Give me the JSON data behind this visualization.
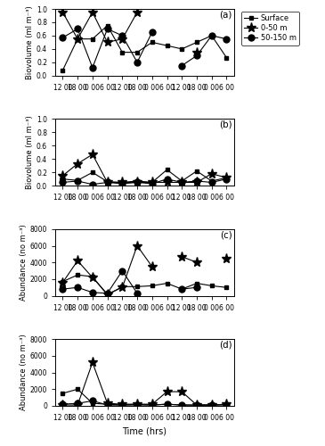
{
  "x_ticks_labels": [
    "12 00",
    "18 00",
    "0 00",
    "6 00",
    "12 00",
    "18 00",
    "0 00",
    "6 00",
    "12 00",
    "18 00",
    "0 00",
    "6 00"
  ],
  "x_vals": [
    0,
    1,
    2,
    3,
    4,
    5,
    6,
    7,
    8,
    9,
    10,
    11
  ],
  "panel_a": {
    "label": "(a)",
    "surface": [
      0.08,
      0.55,
      0.55,
      0.75,
      0.35,
      0.35,
      0.5,
      0.45,
      0.4,
      0.5,
      0.6,
      0.27
    ],
    "star": [
      0.95,
      0.55,
      0.95,
      0.5,
      0.55,
      0.95,
      null,
      null,
      null,
      0.35,
      null,
      null
    ],
    "circle": [
      0.57,
      0.7,
      0.12,
      0.7,
      0.6,
      0.2,
      0.65,
      null,
      0.15,
      0.3,
      0.6,
      0.55
    ],
    "ylim": [
      0,
      1.0
    ],
    "yticks": [
      0,
      0.2,
      0.4,
      0.6,
      0.8,
      1.0
    ],
    "ylabel": "Biovolume (ml m⁻³)"
  },
  "panel_b": {
    "label": "(b)",
    "surface": [
      0.1,
      0.08,
      0.2,
      0.06,
      0.05,
      0.07,
      0.05,
      0.24,
      0.07,
      0.22,
      0.07,
      0.12
    ],
    "star": [
      0.15,
      0.33,
      0.47,
      0.05,
      0.05,
      0.05,
      0.05,
      0.05,
      0.05,
      0.05,
      0.18,
      0.12
    ],
    "circle": [
      0.05,
      0.07,
      0.02,
      0.05,
      0.03,
      0.05,
      0.03,
      0.1,
      0.05,
      0.07,
      0.05,
      0.1
    ],
    "ylim": [
      0,
      1.0
    ],
    "yticks": [
      0,
      0.2,
      0.4,
      0.6,
      0.8,
      1.0
    ],
    "ylabel": "Biovolume (ml m⁻³)"
  },
  "panel_c": {
    "label": "(c)",
    "surface": [
      1700,
      2500,
      2300,
      100,
      1100,
      1100,
      1200,
      1500,
      800,
      1500,
      1200,
      1000
    ],
    "star": [
      1600,
      4200,
      2200,
      200,
      1000,
      6000,
      3500,
      null,
      4700,
      4000,
      null,
      4400
    ],
    "circle": [
      800,
      1000,
      400,
      300,
      3000,
      300,
      null,
      null,
      800,
      1000,
      null,
      null
    ],
    "ylim": [
      0,
      8000
    ],
    "yticks": [
      0,
      2000,
      4000,
      6000,
      8000
    ],
    "ylabel": "Abundance (no m⁻³)"
  },
  "panel_d": {
    "label": "(d)",
    "surface": [
      1500,
      2000,
      300,
      200,
      100,
      200,
      100,
      200,
      100,
      100,
      100,
      200
    ],
    "star": [
      100,
      100,
      5200,
      300,
      200,
      200,
      200,
      1700,
      1700,
      100,
      100,
      200
    ],
    "circle": [
      200,
      300,
      600,
      100,
      100,
      100,
      100,
      200,
      100,
      100,
      100,
      100
    ],
    "ylim": [
      0,
      8000
    ],
    "yticks": [
      0,
      2000,
      4000,
      6000,
      8000
    ],
    "ylabel": "Abundance (no m⁻³)"
  },
  "legend_labels": [
    "Surface",
    "0-50 m",
    "50-150 m"
  ],
  "line_color": "black",
  "xlabel": "Time (hrs)"
}
